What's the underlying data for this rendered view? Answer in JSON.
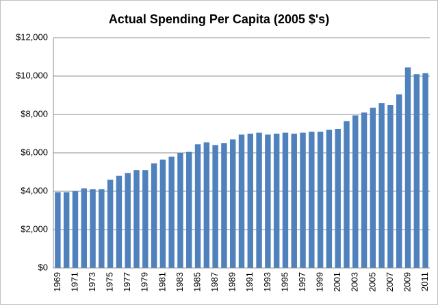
{
  "chart_data": {
    "type": "bar",
    "title": "Actual Spending Per Capita (2005 $'s)",
    "categories": [
      "1969",
      null,
      "1971",
      null,
      "1973",
      null,
      "1975",
      null,
      "1977",
      null,
      "1979",
      null,
      "1981",
      null,
      "1983",
      null,
      "1985",
      null,
      "1987",
      null,
      "1989",
      null,
      "1991",
      null,
      "1993",
      null,
      "1995",
      null,
      "1997",
      null,
      "1999",
      null,
      "2001",
      null,
      "2003",
      null,
      "2005",
      null,
      "2007",
      null,
      "2009",
      null,
      "2011"
    ],
    "values": [
      3950,
      3950,
      4000,
      4150,
      4100,
      4100,
      4600,
      4800,
      4950,
      5100,
      5100,
      5450,
      5650,
      5800,
      6000,
      6050,
      6450,
      6550,
      6400,
      6500,
      6700,
      6950,
      7000,
      7050,
      6950,
      7000,
      7050,
      7000,
      7050,
      7100,
      7100,
      7200,
      7250,
      7650,
      7950,
      8100,
      8350,
      8600,
      8500,
      9050,
      10450,
      10100,
      10150
    ],
    "color": "#4f81bd",
    "ylim": [
      0,
      12000
    ],
    "yticks": [
      {
        "value": 0,
        "label": "$0"
      },
      {
        "value": 2000,
        "label": "$2,000"
      },
      {
        "value": 4000,
        "label": "$4,000"
      },
      {
        "value": 6000,
        "label": "$6,000"
      },
      {
        "value": 8000,
        "label": "$8,000"
      },
      {
        "value": 10000,
        "label": "$10,000"
      },
      {
        "value": 12000,
        "label": "$12,000"
      }
    ],
    "grid": true
  }
}
